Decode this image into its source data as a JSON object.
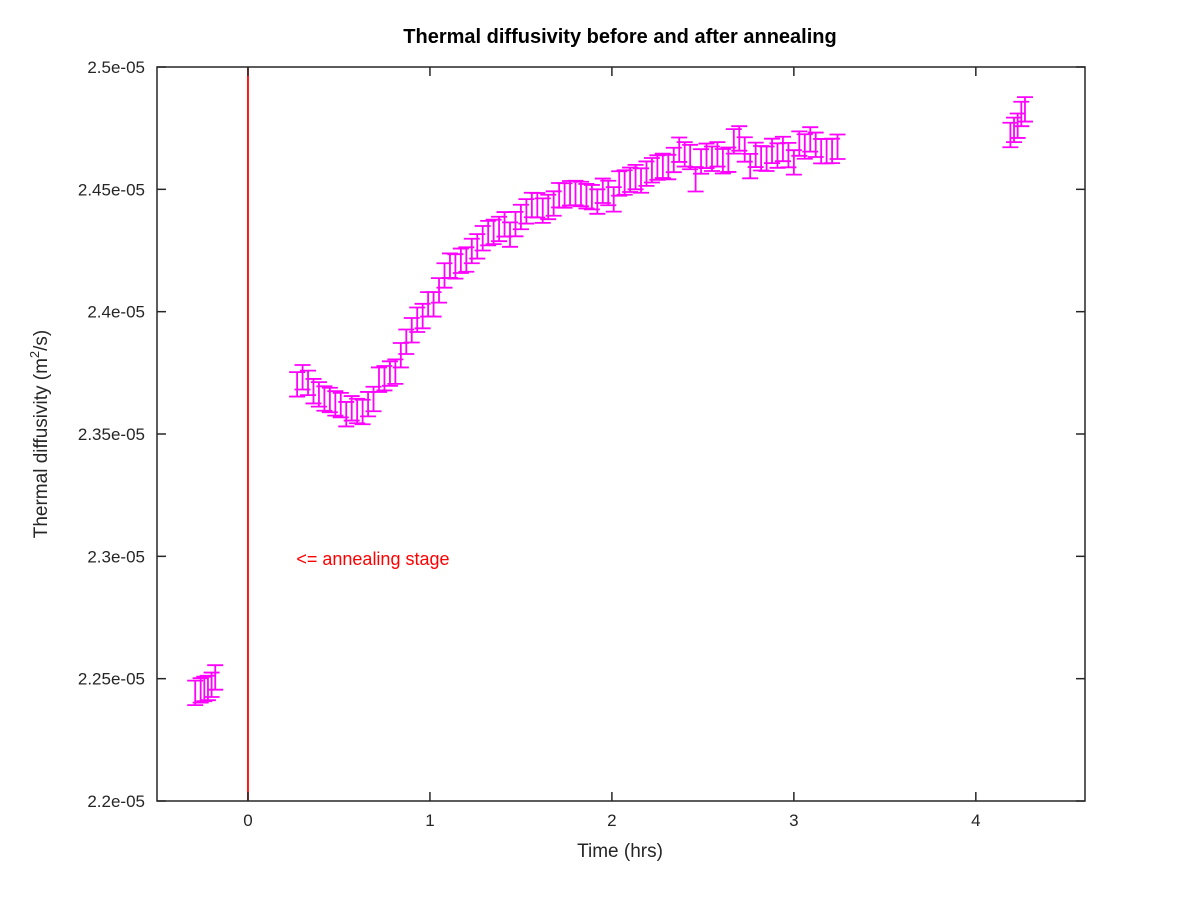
{
  "chart_data": {
    "type": "scatter",
    "title": "Thermal diffusivity before and after annealing",
    "xlabel": "Time (hrs)",
    "ylabel": {
      "prefix": "Thermal diffusivity (m",
      "sup": "2",
      "suffix": "/s)"
    },
    "xlim": [
      -0.5,
      4.6
    ],
    "ylim": [
      2.2e-05,
      2.5e-05
    ],
    "xticks": [
      0,
      1,
      2,
      3,
      4
    ],
    "xtick_labels": [
      "0",
      "1",
      "2",
      "3",
      "4"
    ],
    "yticks": [
      2.2e-05,
      2.25e-05,
      2.3e-05,
      2.35e-05,
      2.4e-05,
      2.45e-05,
      2.5e-05
    ],
    "ytick_labels": [
      "2.2e-05",
      "2.25e-05",
      "2.3e-05",
      "2.35e-05",
      "2.4e-05",
      "2.45e-05",
      "2.5e-05"
    ],
    "grid": false,
    "series_color": "#ff00ff",
    "marker": "errorbar",
    "error": 5e-08,
    "annotation": {
      "text": "<= annealing stage",
      "color": "#ff0000",
      "x": 0.2,
      "y": 2.299e-05
    },
    "vline": {
      "x": 0,
      "color": "#ff0000"
    },
    "points": [
      [
        -0.29,
        2.2442e-05
      ],
      [
        -0.26,
        2.2452e-05
      ],
      [
        -0.24,
        2.2458e-05
      ],
      [
        -0.22,
        2.2462e-05
      ],
      [
        -0.2,
        2.2475e-05
      ],
      [
        -0.18,
        2.2505e-05
      ],
      [
        0.27,
        2.3703e-05
      ],
      [
        0.3,
        2.3732e-05
      ],
      [
        0.33,
        2.3709e-05
      ],
      [
        0.36,
        2.3675e-05
      ],
      [
        0.39,
        2.3662e-05
      ],
      [
        0.42,
        2.3645e-05
      ],
      [
        0.45,
        2.3639e-05
      ],
      [
        0.48,
        2.3625e-05
      ],
      [
        0.51,
        2.3618e-05
      ],
      [
        0.54,
        2.3581e-05
      ],
      [
        0.57,
        2.3605e-05
      ],
      [
        0.6,
        2.3594e-05
      ],
      [
        0.63,
        2.359e-05
      ],
      [
        0.66,
        2.3622e-05
      ],
      [
        0.69,
        2.3643e-05
      ],
      [
        0.72,
        2.3722e-05
      ],
      [
        0.75,
        2.3728e-05
      ],
      [
        0.78,
        2.3747e-05
      ],
      [
        0.81,
        2.3755e-05
      ],
      [
        0.84,
        2.3822e-05
      ],
      [
        0.87,
        2.3877e-05
      ],
      [
        0.9,
        2.3924e-05
      ],
      [
        0.93,
        2.3967e-05
      ],
      [
        0.96,
        2.3982e-05
      ],
      [
        0.99,
        2.403e-05
      ],
      [
        1.02,
        2.403e-05
      ],
      [
        1.05,
        2.4087e-05
      ],
      [
        1.08,
        2.4148e-05
      ],
      [
        1.11,
        2.4188e-05
      ],
      [
        1.14,
        2.4185e-05
      ],
      [
        1.17,
        2.4208e-05
      ],
      [
        1.2,
        2.4213e-05
      ],
      [
        1.23,
        2.4248e-05
      ],
      [
        1.26,
        2.4267e-05
      ],
      [
        1.29,
        2.43e-05
      ],
      [
        1.32,
        2.4321e-05
      ],
      [
        1.35,
        2.4326e-05
      ],
      [
        1.38,
        2.4338e-05
      ],
      [
        1.41,
        2.4357e-05
      ],
      [
        1.44,
        2.4315e-05
      ],
      [
        1.47,
        2.4358e-05
      ],
      [
        1.5,
        2.4387e-05
      ],
      [
        1.53,
        2.441e-05
      ],
      [
        1.56,
        2.4436e-05
      ],
      [
        1.59,
        2.4435e-05
      ],
      [
        1.62,
        2.4413e-05
      ],
      [
        1.65,
        2.4428e-05
      ],
      [
        1.68,
        2.4442e-05
      ],
      [
        1.71,
        2.4476e-05
      ],
      [
        1.74,
        2.4475e-05
      ],
      [
        1.77,
        2.4484e-05
      ],
      [
        1.8,
        2.4485e-05
      ],
      [
        1.83,
        2.4481e-05
      ],
      [
        1.86,
        2.4472e-05
      ],
      [
        1.89,
        2.4468e-05
      ],
      [
        1.92,
        2.445e-05
      ],
      [
        1.95,
        2.4494e-05
      ],
      [
        1.98,
        2.4485e-05
      ],
      [
        2.01,
        2.4459e-05
      ],
      [
        2.04,
        2.4524e-05
      ],
      [
        2.07,
        2.4528e-05
      ],
      [
        2.1,
        2.4539e-05
      ],
      [
        2.13,
        2.455e-05
      ],
      [
        2.16,
        2.4536e-05
      ],
      [
        2.19,
        2.4564e-05
      ],
      [
        2.22,
        2.4578e-05
      ],
      [
        2.25,
        2.4589e-05
      ],
      [
        2.28,
        2.4596e-05
      ],
      [
        2.31,
        2.4591e-05
      ],
      [
        2.34,
        2.462e-05
      ],
      [
        2.37,
        2.4662e-05
      ],
      [
        2.4,
        2.4643e-05
      ],
      [
        2.43,
        2.4632e-05
      ],
      [
        2.46,
        2.4541e-05
      ],
      [
        2.49,
        2.4614e-05
      ],
      [
        2.52,
        2.4637e-05
      ],
      [
        2.55,
        2.4625e-05
      ],
      [
        2.58,
        2.4643e-05
      ],
      [
        2.61,
        2.4615e-05
      ],
      [
        2.64,
        2.4621e-05
      ],
      [
        2.67,
        2.4696e-05
      ],
      [
        2.7,
        2.4708e-05
      ],
      [
        2.73,
        2.4663e-05
      ],
      [
        2.76,
        2.4595e-05
      ],
      [
        2.79,
        2.4641e-05
      ],
      [
        2.82,
        2.4627e-05
      ],
      [
        2.85,
        2.4625e-05
      ],
      [
        2.88,
        2.4657e-05
      ],
      [
        2.91,
        2.4638e-05
      ],
      [
        2.94,
        2.4665e-05
      ],
      [
        2.97,
        2.464e-05
      ],
      [
        3.0,
        2.461e-05
      ],
      [
        3.03,
        2.4687e-05
      ],
      [
        3.06,
        2.4675e-05
      ],
      [
        3.09,
        2.4704e-05
      ],
      [
        3.12,
        2.4682e-05
      ],
      [
        3.15,
        2.4656e-05
      ],
      [
        3.18,
        2.4656e-05
      ],
      [
        3.21,
        2.4657e-05
      ],
      [
        3.24,
        2.4674e-05
      ],
      [
        4.19,
        2.4722e-05
      ],
      [
        4.21,
        2.4743e-05
      ],
      [
        4.23,
        2.476e-05
      ],
      [
        4.25,
        2.4808e-05
      ],
      [
        4.27,
        2.4827e-05
      ]
    ]
  }
}
